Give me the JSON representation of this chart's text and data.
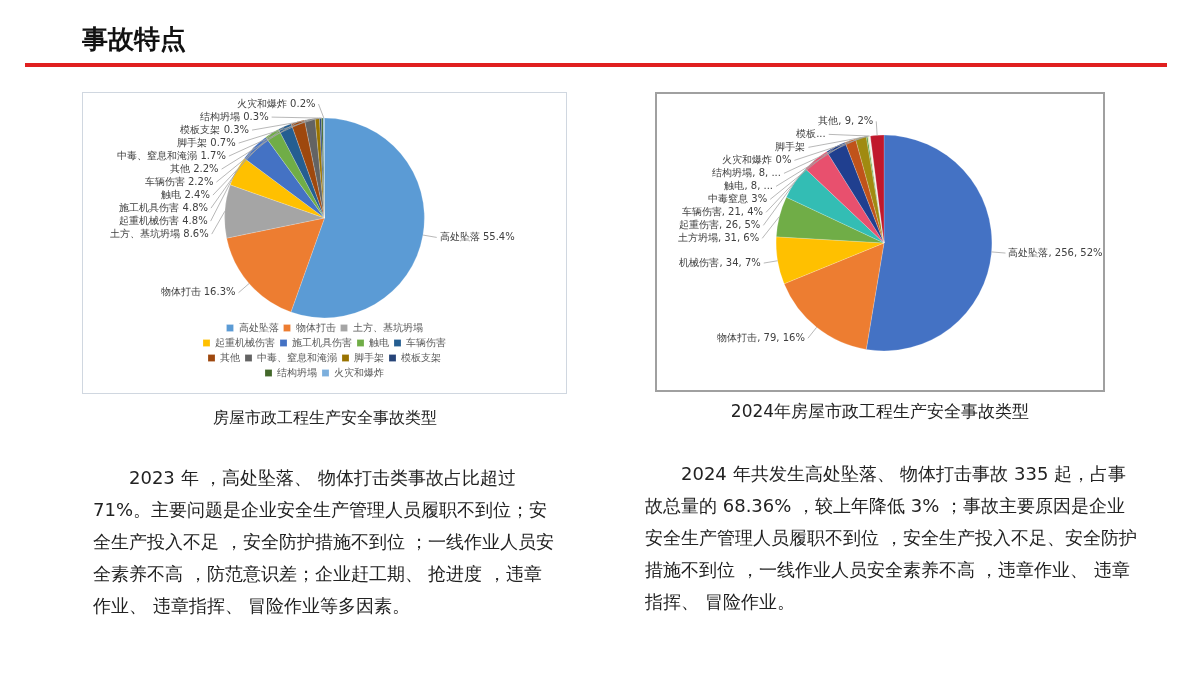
{
  "chart_data": [
    {
      "type": "pie",
      "title": "房屋市政工程生产安全事故类型",
      "categories": [
        "高处坠落",
        "物体打击",
        "土方、基坑坍塌",
        "起重机械伤害",
        "施工机具伤害",
        "触电",
        "车辆伤害",
        "其他",
        "中毒、窒息和淹溺",
        "脚手架",
        "模板支架",
        "结构坍塌",
        "火灾和爆炸"
      ],
      "values": [
        55.4,
        16.3,
        8.6,
        4.8,
        4.8,
        2.4,
        2.2,
        2.2,
        1.7,
        0.7,
        0.3,
        0.3,
        0.2
      ],
      "colors": [
        "#5b9bd5",
        "#ed7d31",
        "#a5a5a5",
        "#ffc000",
        "#4472c4",
        "#70ad47",
        "#255e91",
        "#9e480e",
        "#636363",
        "#997300",
        "#264478",
        "#43682b",
        "#7cafdd"
      ],
      "value_labels": [
        "55.4%",
        "16.3%",
        "8.6%",
        "4.8%",
        "4.8%",
        "2.4%",
        "2.2%",
        "2.2%",
        "1.7%",
        "0.7%",
        "0.3%",
        "0.3%",
        "0.2%"
      ],
      "legend": "bottom",
      "annotations": [
        "事故特点",
        "2023 年 ，高处坠落、 物体打击类事故占比超过 71%。主要问题是企业安全生产管理人员履职不到位；安全生产投入不足 ，安全防护措施不到位 ；一线作业人员安全素养不高 ，防范意识差；企业赶工期、 抢进度 ，违章作业、 违章指挥、 冒险作业等多因素。"
      ]
    },
    {
      "type": "pie",
      "title": "2024年房屋市政工程生产安全事故类型",
      "categories": [
        "高处坠落",
        "物体打击",
        "机械伤害",
        "土方坍塌",
        "起重伤害",
        "车辆伤害",
        "中毒窒息",
        "触电",
        "结构坍塌",
        "火灾和爆炸",
        "脚手架",
        "模板...",
        "其他"
      ],
      "values": [
        52,
        16,
        7,
        6,
        5,
        4,
        3,
        1.6,
        1.6,
        0.2,
        0.2,
        0.2,
        2
      ],
      "colors": [
        "#4472c4",
        "#ed7d31",
        "#ffc000",
        "#70ad47",
        "#33bdb4",
        "#e8506e",
        "#203f8f",
        "#c0531a",
        "#a08a10",
        "#4e9a3a",
        "#e8e0b0",
        "#f2f2f2",
        "#c0182c"
      ],
      "value_labels": [
        "256, 52%",
        "79, 16%",
        "34, 7%",
        "31, 6%",
        "26, 5%",
        "21, 4%",
        "3%",
        "8, ...",
        "8, ...",
        "0%",
        null,
        null,
        "9, 2%"
      ],
      "annotations": [
        "2024 年共发生高处坠落、 物体打击事故 335 起，占事故总量的 68.36% ，较上年降低 3% ；事故主要原因是企业安全生产管理人员履职不到位 ，安全生产投入不足、安全防护措施不到位 ，一线作业人员安全素养不高 ，违章作业、 违章指挥、 冒险作业。"
      ]
    }
  ]
}
